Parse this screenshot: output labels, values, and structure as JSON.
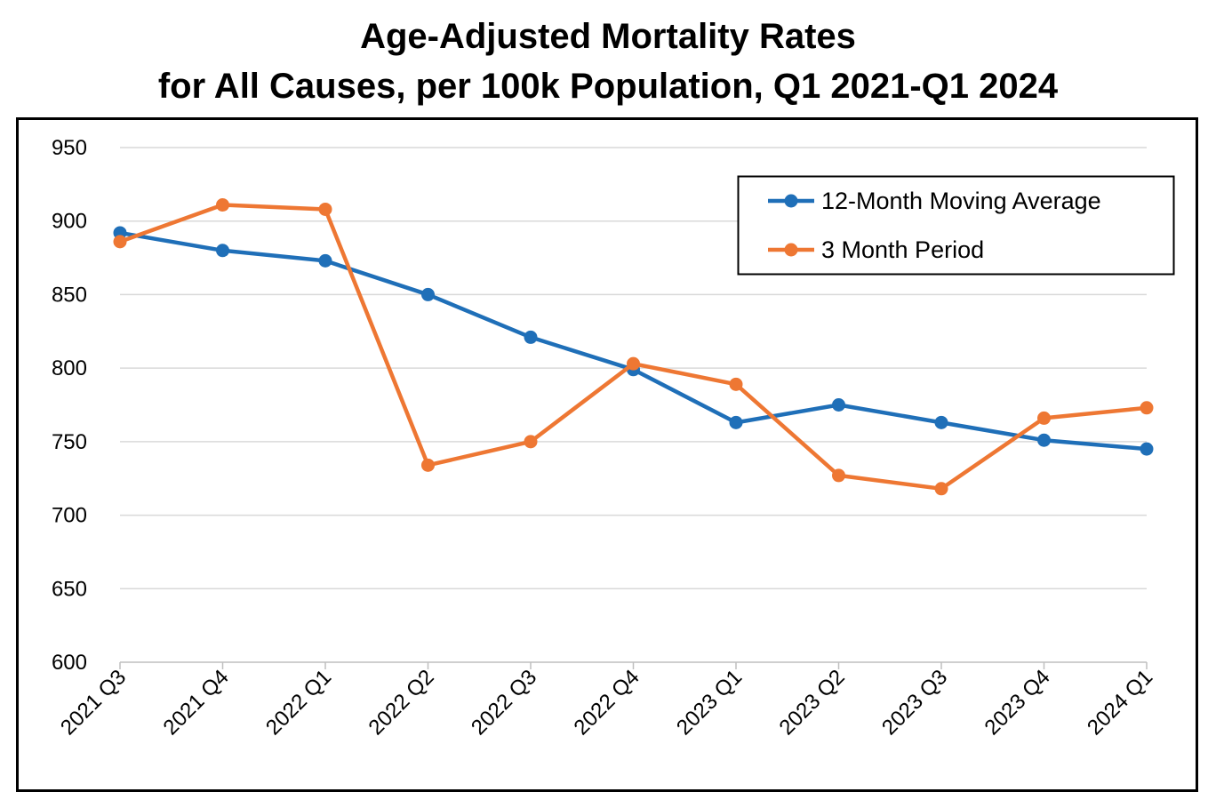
{
  "chart_data": {
    "type": "line",
    "title_lines": [
      "Age-Adjusted Mortality Rates",
      "for All Causes, per 100k Population, Q1 2021-Q1 2024"
    ],
    "xlabel": "",
    "ylabel": "",
    "categories": [
      "2021 Q3",
      "2021 Q4",
      "2022 Q1",
      "2022 Q2",
      "2022 Q3",
      "2022 Q4",
      "2023 Q1",
      "2023 Q2",
      "2023 Q3",
      "2023 Q4",
      "2024 Q1"
    ],
    "ylim": [
      600,
      950
    ],
    "yticks": [
      "600",
      "650",
      "700",
      "750",
      "800",
      "850",
      "900",
      "950"
    ],
    "grid": true,
    "legend_position": "top-right",
    "series": [
      {
        "name": "12-Month Moving Average",
        "color": "#1F6FB8",
        "values": [
          892,
          880,
          873,
          850,
          821,
          799,
          763,
          775,
          763,
          751,
          745
        ]
      },
      {
        "name": "3 Month Period",
        "color": "#EE7733",
        "values": [
          886,
          911,
          908,
          734,
          750,
          803,
          789,
          727,
          718,
          766,
          773
        ]
      }
    ]
  }
}
